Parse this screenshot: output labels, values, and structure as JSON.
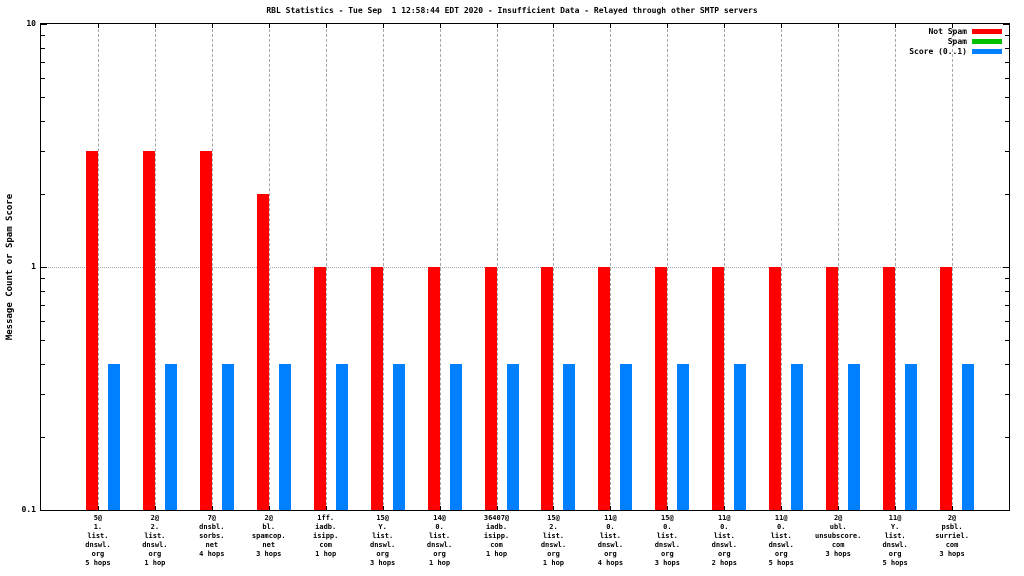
{
  "chart_data": {
    "type": "bar",
    "title": "RBL Statistics - Tue Sep  1 12:58:44 EDT 2020 - Insufficient Data - Relayed through other SMTP servers",
    "ylabel": "Message Count or Spam Score",
    "xlabel": "",
    "yscale": "log",
    "ylim": [
      0.1,
      10
    ],
    "ytick_major": [
      0.1,
      1,
      10
    ],
    "ytick_major_labels": [
      "0.1",
      "1",
      "10"
    ],
    "ytick_minor": [
      0.2,
      0.3,
      0.4,
      0.5,
      0.6,
      0.7,
      0.8,
      0.9,
      2,
      3,
      4,
      5,
      6,
      7,
      8,
      9
    ],
    "ygrid_lines": [
      1
    ],
    "grid": true,
    "legend_position": "top-right-inside",
    "categories": [
      [
        "5@",
        "1.",
        "list.",
        "dnswl.",
        "org",
        "5 hops"
      ],
      [
        "2@",
        "2.",
        "list.",
        "dnswl.",
        "org",
        "1 hop"
      ],
      [
        "7@",
        "dnsbl.",
        "sorbs.",
        "net",
        "4 hops"
      ],
      [
        "2@",
        "bl.",
        "spamcop.",
        "net",
        "3 hops"
      ],
      [
        "1ff.",
        "iadb.",
        "isipp.",
        "com",
        "1 hop"
      ],
      [
        "15@",
        "Y.",
        "list.",
        "dnswl.",
        "org",
        "3 hops"
      ],
      [
        "14@",
        "0.",
        "list.",
        "dnswl.",
        "org",
        "1 hop"
      ],
      [
        "36407@",
        "iadb.",
        "isipp.",
        "com",
        "1 hop"
      ],
      [
        "15@",
        "2.",
        "list.",
        "dnswl.",
        "org",
        "1 hop"
      ],
      [
        "11@",
        "0.",
        "list.",
        "dnswl.",
        "org",
        "4 hops"
      ],
      [
        "15@",
        "0.",
        "list.",
        "dnswl.",
        "org",
        "3 hops"
      ],
      [
        "11@",
        "0.",
        "list.",
        "dnswl.",
        "org",
        "2 hops"
      ],
      [
        "11@",
        "0.",
        "list.",
        "dnswl.",
        "org",
        "5 hops"
      ],
      [
        "2@",
        "ubl.",
        "unsubscore.",
        "com",
        "3 hops"
      ],
      [
        "11@",
        "Y.",
        "list.",
        "dnswl.",
        "org",
        "5 hops"
      ],
      [
        "2@",
        "psbl.",
        "surriel.",
        "com",
        "3 hops"
      ]
    ],
    "series": [
      {
        "name": "Not Spam",
        "color": "#ff0000",
        "values": [
          3,
          3,
          3,
          2,
          1,
          1,
          1,
          1,
          1,
          1,
          1,
          1,
          1,
          1,
          1,
          1
        ]
      },
      {
        "name": "Spam",
        "color": "#00c000",
        "values": [
          0,
          0,
          0,
          0,
          0,
          0,
          0,
          0,
          0,
          0,
          0,
          0,
          0,
          0,
          0,
          0
        ]
      },
      {
        "name": "Score (0..1)",
        "color": "#0080ff",
        "values": [
          0.4,
          0.4,
          0.4,
          0.4,
          0.4,
          0.4,
          0.4,
          0.4,
          0.4,
          0.4,
          0.4,
          0.4,
          0.4,
          0.4,
          0.4,
          0.4
        ]
      }
    ],
    "colors": {
      "axis": "#000000",
      "grid": "#a6a6a6",
      "background": "#ffffff"
    }
  }
}
